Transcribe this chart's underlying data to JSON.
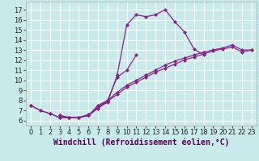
{
  "background_color": "#c8eaea",
  "grid_color": "#ffffff",
  "line_color": "#882288",
  "marker_style": "D",
  "marker_size": 2,
  "marker_lw": 0.5,
  "line_width": 0.9,
  "xlabel": "Windchill (Refroidissement éolien,°C)",
  "xlabel_fontsize": 7,
  "tick_fontsize": 6,
  "ylim": [
    5.5,
    17.8
  ],
  "xlim": [
    -0.5,
    23.5
  ],
  "yticks": [
    6,
    7,
    8,
    9,
    10,
    11,
    12,
    13,
    14,
    15,
    16,
    17
  ],
  "xticks": [
    0,
    1,
    2,
    3,
    4,
    5,
    6,
    7,
    8,
    9,
    10,
    11,
    12,
    13,
    14,
    15,
    16,
    17,
    18,
    19,
    20,
    21,
    22,
    23
  ],
  "series": [
    {
      "x": [
        0,
        1,
        2,
        3,
        4,
        5,
        6,
        7,
        8
      ],
      "y": [
        7.5,
        7.0,
        6.7,
        6.3,
        6.3,
        6.3,
        6.5,
        7.5,
        8.0
      ]
    },
    {
      "x": [
        0,
        1,
        2,
        3,
        4,
        5,
        6,
        7,
        8,
        9,
        10,
        11,
        12,
        13,
        14,
        15,
        16,
        17,
        18
      ],
      "y": [
        7.5,
        7.0,
        6.7,
        6.3,
        6.3,
        6.3,
        6.5,
        7.3,
        7.8,
        10.5,
        15.5,
        16.5,
        16.3,
        16.5,
        17.0,
        15.8,
        14.8,
        13.1,
        12.5
      ]
    },
    {
      "x": [
        6,
        7,
        8,
        9,
        10,
        11
      ],
      "y": [
        6.5,
        7.3,
        8.0,
        10.3,
        11.0,
        12.5
      ]
    },
    {
      "x": [
        3,
        4,
        5,
        6,
        7,
        8,
        9,
        10,
        11,
        12,
        13,
        14,
        15,
        16,
        17,
        18,
        19,
        20,
        21,
        22,
        23
      ],
      "y": [
        6.5,
        6.3,
        6.3,
        6.5,
        7.2,
        8.0,
        8.8,
        9.5,
        10.0,
        10.5,
        11.0,
        11.5,
        11.9,
        12.2,
        12.5,
        12.8,
        13.0,
        13.2,
        13.5,
        13.0,
        13.0
      ]
    },
    {
      "x": [
        3,
        4,
        5,
        6,
        7,
        8,
        9,
        10,
        11,
        12,
        13,
        14,
        15,
        16,
        17,
        18,
        19,
        20,
        21,
        22,
        23
      ],
      "y": [
        6.5,
        6.3,
        6.3,
        6.6,
        7.2,
        7.9,
        8.6,
        9.3,
        9.8,
        10.3,
        10.8,
        11.2,
        11.6,
        12.0,
        12.3,
        12.6,
        12.9,
        13.1,
        13.3,
        12.8,
        13.0
      ]
    }
  ]
}
